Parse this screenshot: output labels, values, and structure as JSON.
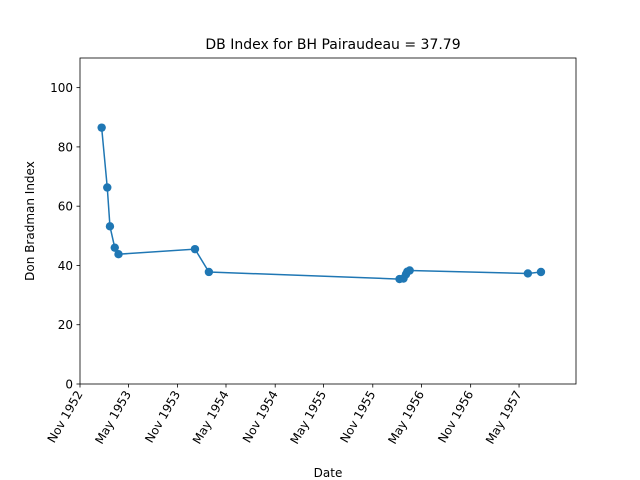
{
  "chart_data": {
    "type": "line",
    "title": "DB Index for BH Pairaudeau = 37.79",
    "xlabel": "Date",
    "ylabel": "Don Bradman Index",
    "xlim": [
      "1952-11-01",
      "1957-11-30"
    ],
    "ylim": [
      0,
      110
    ],
    "x_ticks": [
      "1952-11-01",
      "1953-05-01",
      "1953-11-01",
      "1954-05-01",
      "1954-11-01",
      "1955-05-01",
      "1955-11-01",
      "1956-05-01",
      "1956-11-01",
      "1957-05-01"
    ],
    "x_tick_labels": [
      "Nov 1952",
      "May 1953",
      "Nov 1953",
      "May 1954",
      "Nov 1954",
      "May 1955",
      "Nov 1955",
      "May 1956",
      "Nov 1956",
      "May 1957"
    ],
    "y_ticks": [
      0,
      20,
      40,
      60,
      80,
      100
    ],
    "y_tick_labels": [
      "0",
      "20",
      "40",
      "60",
      "80",
      "100"
    ],
    "grid": false,
    "series": [
      {
        "color": "#1f77b4",
        "marker": "circle",
        "points": [
          {
            "x": "1953-01-21",
            "y": 86.5
          },
          {
            "x": "1953-02-11",
            "y": 66.3
          },
          {
            "x": "1953-02-21",
            "y": 53.2
          },
          {
            "x": "1953-03-11",
            "y": 46.0
          },
          {
            "x": "1953-03-25",
            "y": 43.8
          },
          {
            "x": "1954-01-05",
            "y": 45.5
          },
          {
            "x": "1954-02-26",
            "y": 37.8
          },
          {
            "x": "1956-02-09",
            "y": 35.4
          },
          {
            "x": "1956-02-24",
            "y": 35.6
          },
          {
            "x": "1956-03-04",
            "y": 37.0
          },
          {
            "x": "1956-03-09",
            "y": 37.9
          },
          {
            "x": "1956-03-18",
            "y": 38.3
          },
          {
            "x": "1957-06-03",
            "y": 37.3
          },
          {
            "x": "1957-07-22",
            "y": 37.79
          }
        ]
      }
    ]
  }
}
